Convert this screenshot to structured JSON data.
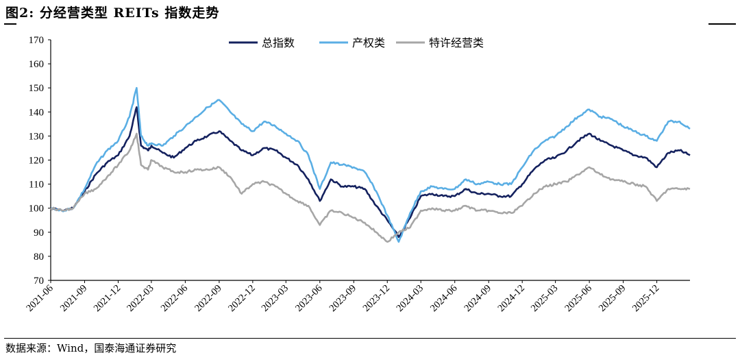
{
  "header": {
    "title": "图2:  分经营类型 REITs 指数走势"
  },
  "footer": {
    "source": "数据来源：Wind，国泰海通证券研究"
  },
  "chart_data": {
    "type": "line",
    "title": "",
    "xlabel": "",
    "ylabel": "",
    "ylim": [
      70,
      170
    ],
    "yticks": [
      70,
      80,
      90,
      100,
      110,
      120,
      130,
      140,
      150,
      160,
      170
    ],
    "xlim": [
      "2021-06",
      "2026-03"
    ],
    "xtick_labels": [
      "2021-06",
      "2021-09",
      "2021-12",
      "2022-03",
      "2022-06",
      "2022-09",
      "2022-12",
      "2023-03",
      "2023-06",
      "2023-09",
      "2023-12",
      "2024-03",
      "2024-06",
      "2024-09",
      "2024-12",
      "2025-03",
      "2025-06",
      "2025-09",
      "2025-12"
    ],
    "grid": false,
    "legend_position": "top-center",
    "series": [
      {
        "name": "总指数",
        "color": "#14215e",
        "points": [
          [
            "2021-06",
            100
          ],
          [
            "2021-07",
            99
          ],
          [
            "2021-08",
            100
          ],
          [
            "2021-09",
            107
          ],
          [
            "2021-10",
            114
          ],
          [
            "2021-11",
            119
          ],
          [
            "2021-12",
            122
          ],
          [
            "2022-01",
            130
          ],
          [
            "2022-01-20",
            142
          ],
          [
            "2022-02",
            126
          ],
          [
            "2022-02-20",
            124
          ],
          [
            "2022-03",
            126
          ],
          [
            "2022-04",
            123
          ],
          [
            "2022-05",
            121
          ],
          [
            "2022-06",
            125
          ],
          [
            "2022-07",
            128
          ],
          [
            "2022-08",
            130
          ],
          [
            "2022-09",
            132
          ],
          [
            "2022-10",
            128
          ],
          [
            "2022-11",
            124
          ],
          [
            "2022-12",
            122
          ],
          [
            "2023-01",
            125
          ],
          [
            "2023-02",
            124
          ],
          [
            "2023-03",
            121
          ],
          [
            "2023-04",
            118
          ],
          [
            "2023-05",
            112
          ],
          [
            "2023-06",
            103
          ],
          [
            "2023-07",
            112
          ],
          [
            "2023-08",
            109
          ],
          [
            "2023-09",
            109
          ],
          [
            "2023-10",
            108
          ],
          [
            "2023-11",
            101
          ],
          [
            "2023-12",
            95
          ],
          [
            "2024-01",
            88
          ],
          [
            "2024-02",
            96
          ],
          [
            "2024-03",
            105
          ],
          [
            "2024-04",
            106
          ],
          [
            "2024-05",
            105
          ],
          [
            "2024-06",
            105
          ],
          [
            "2024-07",
            108
          ],
          [
            "2024-08",
            106
          ],
          [
            "2024-09",
            106
          ],
          [
            "2024-10",
            105
          ],
          [
            "2024-11",
            105
          ],
          [
            "2024-12",
            110
          ],
          [
            "2025-01",
            116
          ],
          [
            "2025-02",
            120
          ],
          [
            "2025-03",
            121
          ],
          [
            "2025-04",
            124
          ],
          [
            "2025-05",
            128
          ],
          [
            "2025-06",
            131
          ],
          [
            "2025-07",
            128
          ],
          [
            "2025-08",
            126
          ],
          [
            "2025-09",
            124
          ],
          [
            "2025-10",
            122
          ],
          [
            "2025-11",
            121
          ],
          [
            "2025-12",
            117
          ],
          [
            "2026-01",
            123
          ],
          [
            "2026-02",
            124
          ],
          [
            "2026-03",
            122
          ]
        ]
      },
      {
        "name": "产权类",
        "color": "#5aaee4",
        "points": [
          [
            "2021-06",
            100
          ],
          [
            "2021-07",
            99
          ],
          [
            "2021-08",
            100
          ],
          [
            "2021-09",
            108
          ],
          [
            "2021-10",
            118
          ],
          [
            "2021-11",
            124
          ],
          [
            "2021-12",
            128
          ],
          [
            "2022-01",
            138
          ],
          [
            "2022-01-20",
            150
          ],
          [
            "2022-02",
            130
          ],
          [
            "2022-02-20",
            126
          ],
          [
            "2022-03",
            127
          ],
          [
            "2022-04",
            126
          ],
          [
            "2022-05",
            130
          ],
          [
            "2022-06",
            134
          ],
          [
            "2022-07",
            138
          ],
          [
            "2022-08",
            142
          ],
          [
            "2022-09",
            145
          ],
          [
            "2022-10",
            140
          ],
          [
            "2022-11",
            135
          ],
          [
            "2022-12",
            132
          ],
          [
            "2023-01",
            136
          ],
          [
            "2023-02",
            134
          ],
          [
            "2023-03",
            131
          ],
          [
            "2023-04",
            128
          ],
          [
            "2023-05",
            122
          ],
          [
            "2023-06",
            108
          ],
          [
            "2023-07",
            119
          ],
          [
            "2023-08",
            118
          ],
          [
            "2023-09",
            117
          ],
          [
            "2023-10",
            115
          ],
          [
            "2023-11",
            107
          ],
          [
            "2023-12",
            97
          ],
          [
            "2024-01",
            86
          ],
          [
            "2024-02",
            98
          ],
          [
            "2024-03",
            107
          ],
          [
            "2024-04",
            109
          ],
          [
            "2024-05",
            108
          ],
          [
            "2024-06",
            108
          ],
          [
            "2024-07",
            112
          ],
          [
            "2024-08",
            110
          ],
          [
            "2024-09",
            111
          ],
          [
            "2024-10",
            110
          ],
          [
            "2024-11",
            110
          ],
          [
            "2024-12",
            117
          ],
          [
            "2025-01",
            124
          ],
          [
            "2025-02",
            128
          ],
          [
            "2025-03",
            130
          ],
          [
            "2025-04",
            134
          ],
          [
            "2025-05",
            138
          ],
          [
            "2025-06",
            141
          ],
          [
            "2025-07",
            138
          ],
          [
            "2025-08",
            137
          ],
          [
            "2025-09",
            134
          ],
          [
            "2025-10",
            132
          ],
          [
            "2025-11",
            130
          ],
          [
            "2025-12",
            128
          ],
          [
            "2026-01",
            136
          ],
          [
            "2026-02",
            136
          ],
          [
            "2026-03",
            133
          ]
        ]
      },
      {
        "name": "特许经营类",
        "color": "#a6a6a6",
        "points": [
          [
            "2021-06",
            100
          ],
          [
            "2021-07",
            99
          ],
          [
            "2021-08",
            100
          ],
          [
            "2021-09",
            106
          ],
          [
            "2021-10",
            108
          ],
          [
            "2021-11",
            113
          ],
          [
            "2021-12",
            118
          ],
          [
            "2022-01",
            124
          ],
          [
            "2022-01-20",
            131
          ],
          [
            "2022-02",
            118
          ],
          [
            "2022-02-20",
            116
          ],
          [
            "2022-03",
            120
          ],
          [
            "2022-04",
            117
          ],
          [
            "2022-05",
            115
          ],
          [
            "2022-06",
            115
          ],
          [
            "2022-07",
            116
          ],
          [
            "2022-08",
            116
          ],
          [
            "2022-09",
            117
          ],
          [
            "2022-10",
            113
          ],
          [
            "2022-11",
            106
          ],
          [
            "2022-12",
            110
          ],
          [
            "2023-01",
            111
          ],
          [
            "2023-02",
            109
          ],
          [
            "2023-03",
            106
          ],
          [
            "2023-04",
            103
          ],
          [
            "2023-05",
            101
          ],
          [
            "2023-06",
            93
          ],
          [
            "2023-07",
            99
          ],
          [
            "2023-08",
            98
          ],
          [
            "2023-09",
            96
          ],
          [
            "2023-10",
            94
          ],
          [
            "2023-11",
            90
          ],
          [
            "2023-12",
            86
          ],
          [
            "2024-01",
            90
          ],
          [
            "2024-02",
            92
          ],
          [
            "2024-03",
            99
          ],
          [
            "2024-04",
            100
          ],
          [
            "2024-05",
            99
          ],
          [
            "2024-06",
            99
          ],
          [
            "2024-07",
            101
          ],
          [
            "2024-08",
            99
          ],
          [
            "2024-09",
            99
          ],
          [
            "2024-10",
            98
          ],
          [
            "2024-11",
            98
          ],
          [
            "2024-12",
            101
          ],
          [
            "2025-01",
            106
          ],
          [
            "2025-02",
            109
          ],
          [
            "2025-03",
            110
          ],
          [
            "2025-04",
            111
          ],
          [
            "2025-05",
            114
          ],
          [
            "2025-06",
            117
          ],
          [
            "2025-07",
            114
          ],
          [
            "2025-08",
            112
          ],
          [
            "2025-09",
            111
          ],
          [
            "2025-10",
            110
          ],
          [
            "2025-11",
            109
          ],
          [
            "2025-12",
            103
          ],
          [
            "2026-01",
            108
          ],
          [
            "2026-02",
            108
          ],
          [
            "2026-03",
            108
          ]
        ]
      }
    ]
  }
}
